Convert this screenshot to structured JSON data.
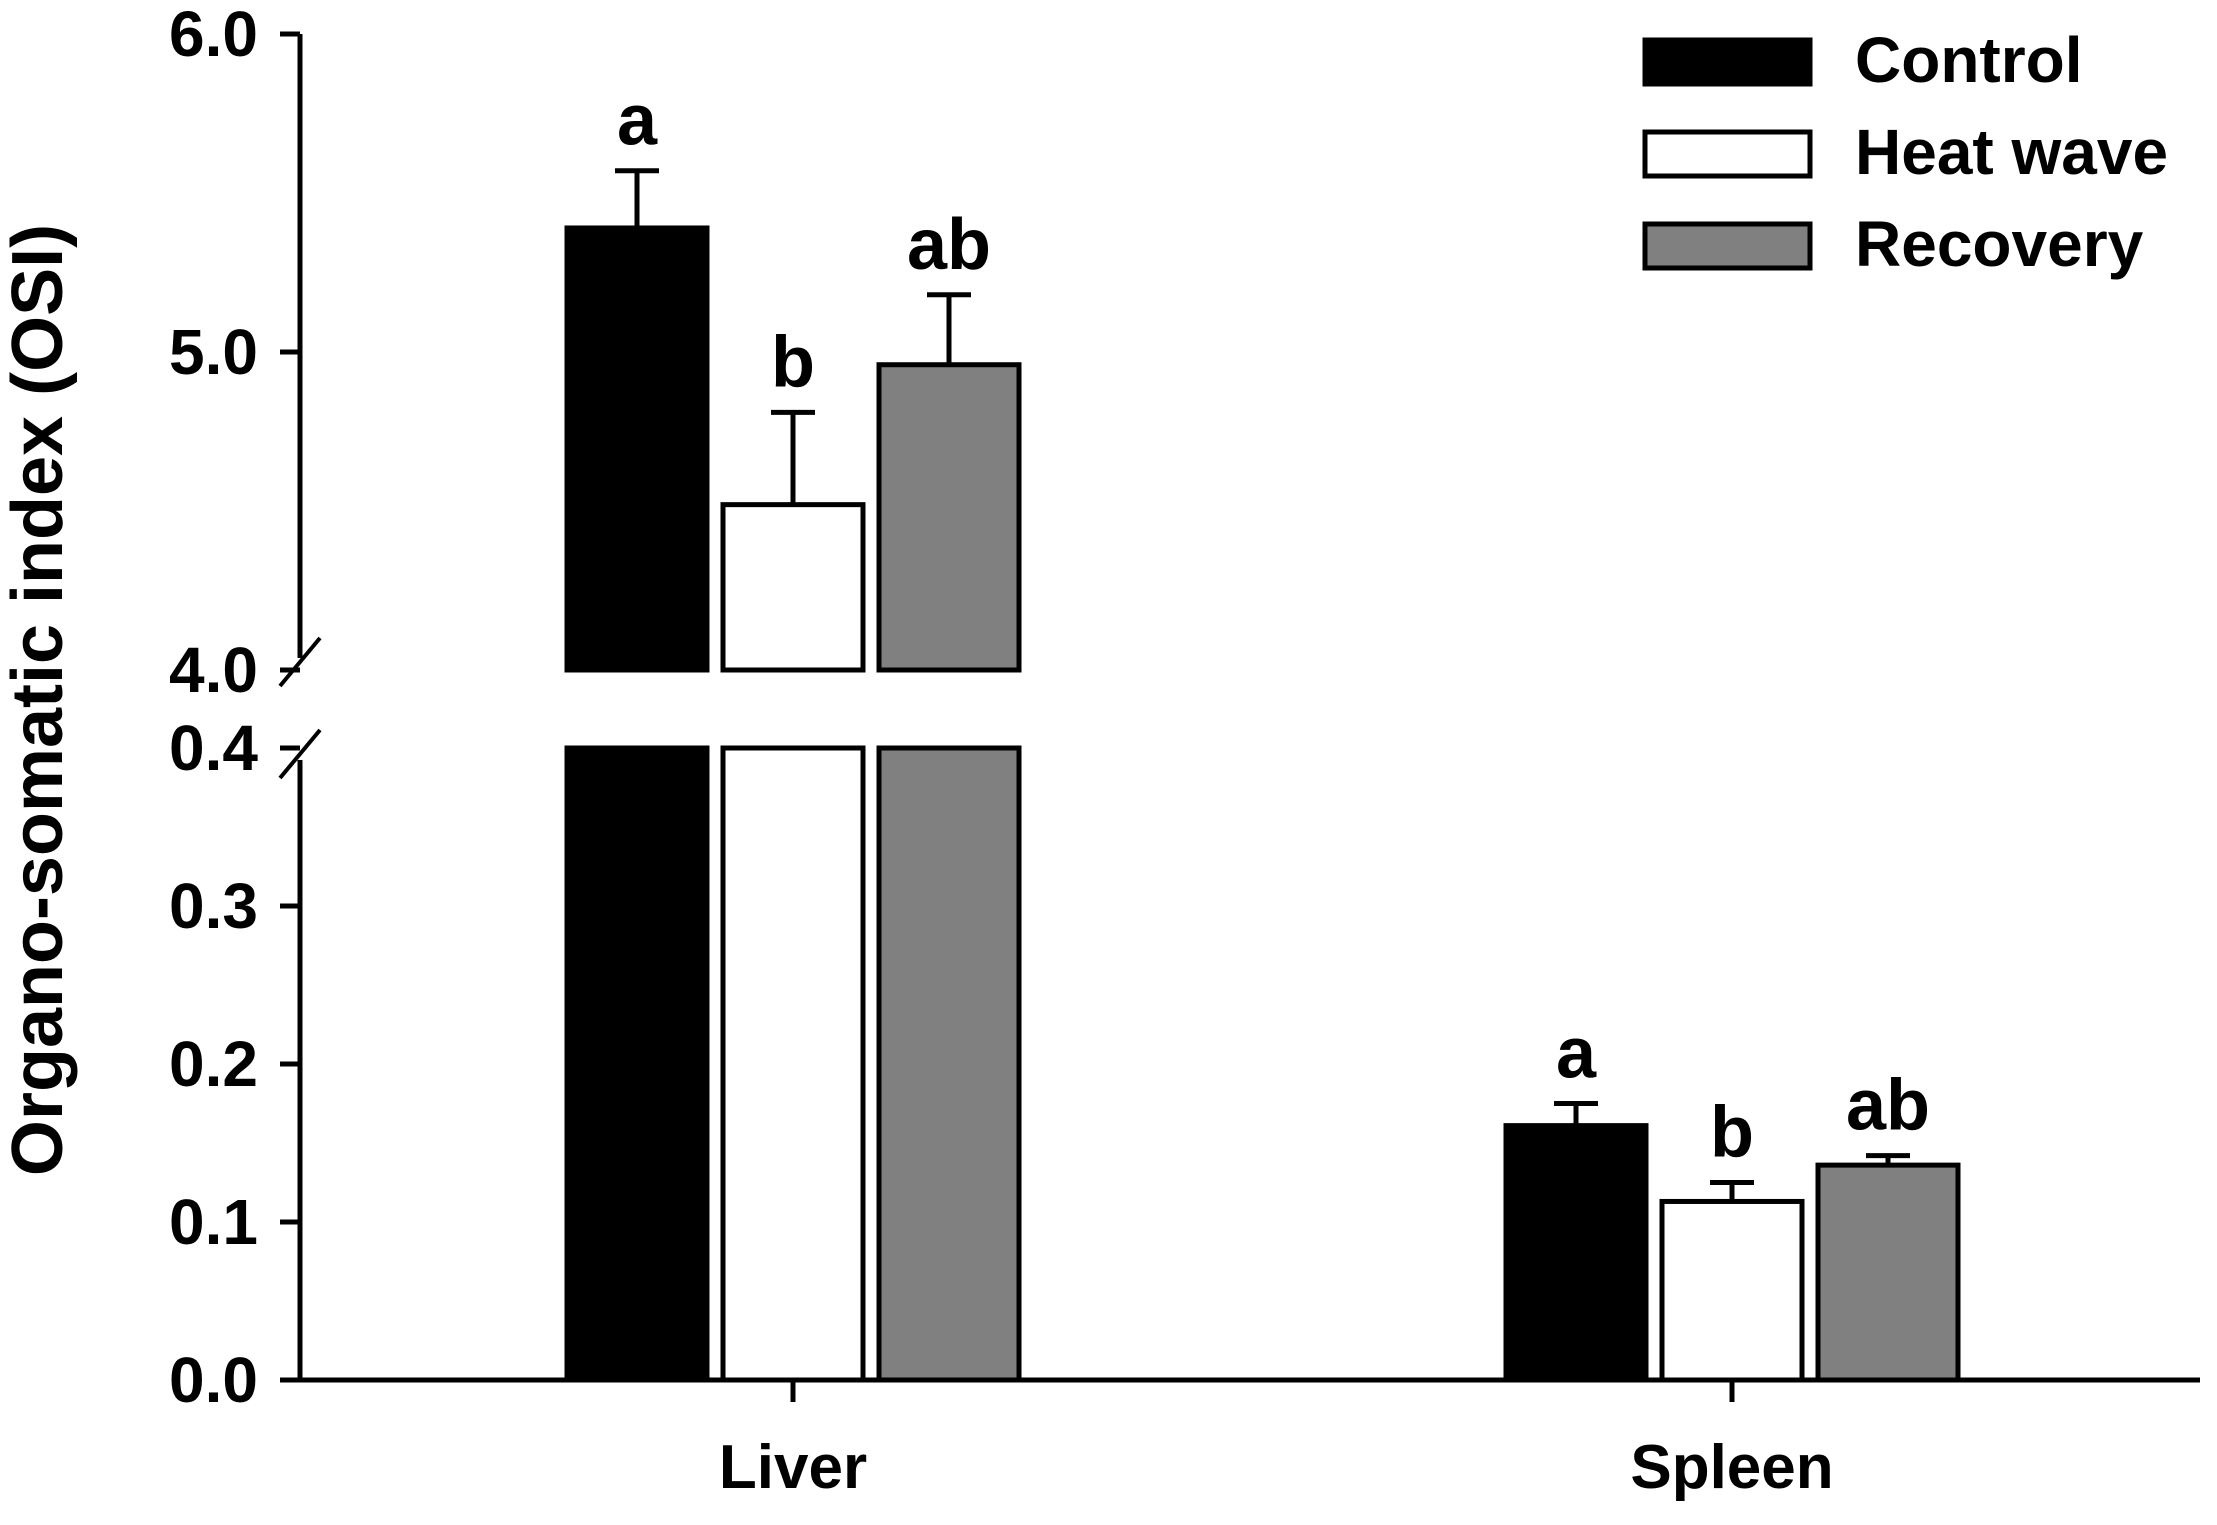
{
  "chart_data": {
    "type": "bar",
    "ylabel": "Organo-somatic index (OSI)",
    "categories": [
      "Liver",
      "Spleen"
    ],
    "series": [
      {
        "name": "Control",
        "color": "#000000",
        "values": [
          5.39,
          0.161
        ],
        "errors": [
          0.18,
          0.014
        ],
        "letters": [
          "a",
          "a"
        ]
      },
      {
        "name": "Heat wave",
        "color": "#ffffff",
        "values": [
          4.52,
          0.113
        ],
        "errors": [
          0.29,
          0.012
        ],
        "letters": [
          "b",
          "b"
        ]
      },
      {
        "name": "Recovery",
        "color": "#808080",
        "values": [
          4.96,
          0.136
        ],
        "errors": [
          0.22,
          0.006
        ],
        "letters": [
          "ab",
          "ab"
        ]
      }
    ],
    "y_axis_broken": true,
    "lower_segment": {
      "ylim": [
        0.0,
        0.4
      ],
      "ticks": [
        0.0,
        0.1,
        0.2,
        0.3,
        0.4
      ],
      "tick_labels": [
        "0.0",
        "0.1",
        "0.2",
        "0.3",
        "0.4"
      ]
    },
    "upper_segment": {
      "ylim": [
        4.0,
        6.0
      ],
      "ticks": [
        4.0,
        5.0,
        6.0
      ],
      "tick_labels": [
        "4.0",
        "5.0",
        "6.0"
      ]
    },
    "legend_position": "top-right"
  }
}
